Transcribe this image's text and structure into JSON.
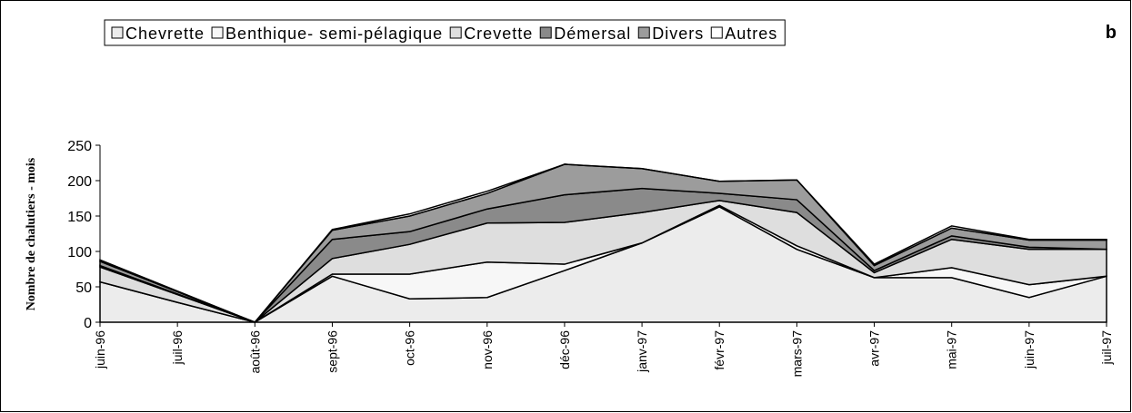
{
  "chart_data": {
    "type": "stacked_area",
    "panel_label": "b",
    "y_label": "Nombre de chalutiers - mois",
    "categories": [
      "juin-96",
      "juil-96",
      "août-96",
      "sept-96",
      "oct-96",
      "nov-96",
      "déc-96",
      "janv-97",
      "févr-97",
      "mars-97",
      "avr-97",
      "mai-97",
      "juin-97",
      "juil-97"
    ],
    "series": [
      {
        "name": "Chevrette",
        "color": "#ececec",
        "values": [
          57,
          28,
          0,
          65,
          33,
          35,
          73,
          112,
          163,
          103,
          63,
          63,
          35,
          65
        ]
      },
      {
        "name": "Benthique- semi-pélagique",
        "color": "#f7f7f7",
        "values": [
          0,
          0,
          0,
          3,
          35,
          50,
          9,
          0,
          2,
          5,
          0,
          14,
          18,
          0
        ]
      },
      {
        "name": "Crevette",
        "color": "#dedede",
        "values": [
          21,
          11,
          0,
          22,
          42,
          55,
          59,
          43,
          7,
          47,
          7,
          40,
          50,
          38
        ]
      },
      {
        "name": "Démersal",
        "color": "#8a8a8a",
        "values": [
          2,
          1,
          0,
          27,
          18,
          20,
          39,
          34,
          10,
          18,
          3,
          5,
          3,
          0
        ]
      },
      {
        "name": "Divers",
        "color": "#9c9c9c",
        "values": [
          6,
          3,
          0,
          13,
          22,
          22,
          43,
          28,
          17,
          28,
          7,
          11,
          10,
          13
        ]
      },
      {
        "name": "Autres",
        "color": "#ffffff",
        "values": [
          2,
          1,
          0,
          1,
          3,
          3,
          0,
          0,
          0,
          0,
          2,
          3,
          1,
          1
        ]
      }
    ],
    "ylim": [
      0,
      250
    ],
    "yticks": [
      0,
      50,
      100,
      150,
      200,
      250
    ],
    "legend": "top"
  }
}
